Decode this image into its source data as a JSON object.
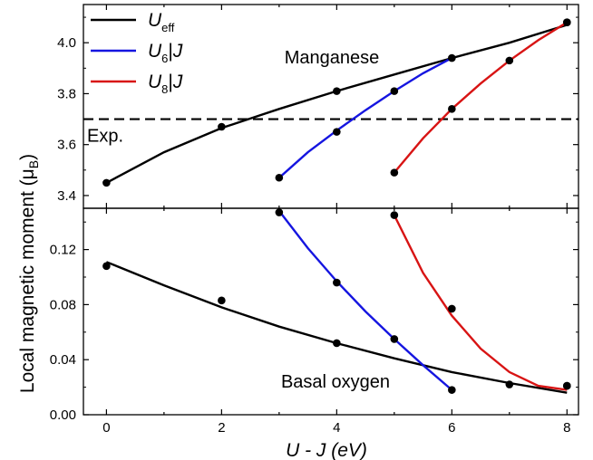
{
  "chart_data": {
    "type": "line",
    "ylabel": "Local magnetic moment (μ",
    "ylabel_sub": "B",
    "ylabel_close": ")",
    "xlabel": "U - J (eV)",
    "x_ticks": [
      "0",
      "2",
      "4",
      "6",
      "8"
    ],
    "xlim": [
      -0.4,
      8.2
    ],
    "legend": [
      {
        "base": "U",
        "sub": "eff",
        "bar": "",
        "tail": "",
        "color": "#000000"
      },
      {
        "base": "U",
        "sub": "6",
        "bar": "|",
        "tail": "J",
        "color": "#1515e0"
      },
      {
        "base": "U",
        "sub": "8",
        "bar": "|",
        "tail": "J",
        "color": "#d81414"
      }
    ],
    "panels": [
      {
        "name": "top",
        "label": "Manganese",
        "ylim": [
          3.35,
          4.15
        ],
        "y_ticks": [
          "3.4",
          "3.6",
          "3.8",
          "4.0"
        ],
        "y_tick_values": [
          3.4,
          3.6,
          3.8,
          4.0
        ],
        "reference": {
          "label": "Exp.",
          "value": 3.7
        },
        "series": [
          {
            "color": "#000000",
            "points": [
              [
                0,
                3.45
              ],
              [
                2,
                3.67
              ],
              [
                4,
                3.81
              ],
              [
                8,
                4.08
              ]
            ],
            "curve": [
              [
                0,
                3.45
              ],
              [
                1,
                3.57
              ],
              [
                2,
                3.665
              ],
              [
                3,
                3.74
              ],
              [
                4,
                3.81
              ],
              [
                5,
                3.875
              ],
              [
                6,
                3.94
              ],
              [
                7,
                4.0
              ],
              [
                8,
                4.07
              ]
            ]
          },
          {
            "color": "#1515e0",
            "points": [
              [
                3,
                3.47
              ],
              [
                4,
                3.65
              ],
              [
                5,
                3.81
              ],
              [
                6,
                3.94
              ]
            ],
            "curve": [
              [
                3,
                3.47
              ],
              [
                3.5,
                3.57
              ],
              [
                4,
                3.655
              ],
              [
                4.5,
                3.735
              ],
              [
                5,
                3.81
              ],
              [
                5.5,
                3.88
              ],
              [
                6,
                3.94
              ]
            ]
          },
          {
            "color": "#d81414",
            "points": [
              [
                5,
                3.49
              ],
              [
                6,
                3.74
              ],
              [
                7,
                3.93
              ],
              [
                8,
                4.08
              ]
            ],
            "curve": [
              [
                5,
                3.49
              ],
              [
                5.5,
                3.625
              ],
              [
                6,
                3.74
              ],
              [
                6.5,
                3.84
              ],
              [
                7,
                3.93
              ],
              [
                7.5,
                4.01
              ],
              [
                8,
                4.08
              ]
            ]
          }
        ]
      },
      {
        "name": "bottom",
        "label": "Basal oxygen",
        "ylim": [
          0.0,
          0.15
        ],
        "y_ticks": [
          "0.00",
          "0.04",
          "0.08",
          "0.12"
        ],
        "y_tick_values": [
          0.0,
          0.04,
          0.08,
          0.12
        ],
        "series": [
          {
            "color": "#000000",
            "points": [
              [
                0,
                0.108
              ],
              [
                2,
                0.083
              ],
              [
                4,
                0.052
              ],
              [
                7,
                0.022
              ],
              [
                8,
                0.021
              ]
            ],
            "curve": [
              [
                0,
                0.111
              ],
              [
                1,
                0.094
              ],
              [
                2,
                0.078
              ],
              [
                3,
                0.064
              ],
              [
                4,
                0.052
              ],
              [
                5,
                0.041
              ],
              [
                6,
                0.031
              ],
              [
                7,
                0.023
              ],
              [
                8,
                0.016
              ]
            ]
          },
          {
            "color": "#1515e0",
            "points": [
              [
                3,
                0.147
              ],
              [
                4,
                0.096
              ],
              [
                5,
                0.055
              ],
              [
                6,
                0.018
              ]
            ],
            "curve": [
              [
                3,
                0.148
              ],
              [
                3.5,
                0.121
              ],
              [
                4,
                0.097
              ],
              [
                4.5,
                0.075
              ],
              [
                5,
                0.055
              ],
              [
                5.5,
                0.036
              ],
              [
                6,
                0.018
              ]
            ]
          },
          {
            "color": "#d81414",
            "points": [
              [
                5,
                0.145
              ],
              [
                6,
                0.077
              ],
              [
                8,
                0.021
              ]
            ],
            "curve": [
              [
                5,
                0.145
              ],
              [
                5.5,
                0.103
              ],
              [
                6,
                0.072
              ],
              [
                6.5,
                0.048
              ],
              [
                7,
                0.031
              ],
              [
                7.5,
                0.021
              ],
              [
                8,
                0.018
              ]
            ]
          }
        ]
      }
    ]
  }
}
